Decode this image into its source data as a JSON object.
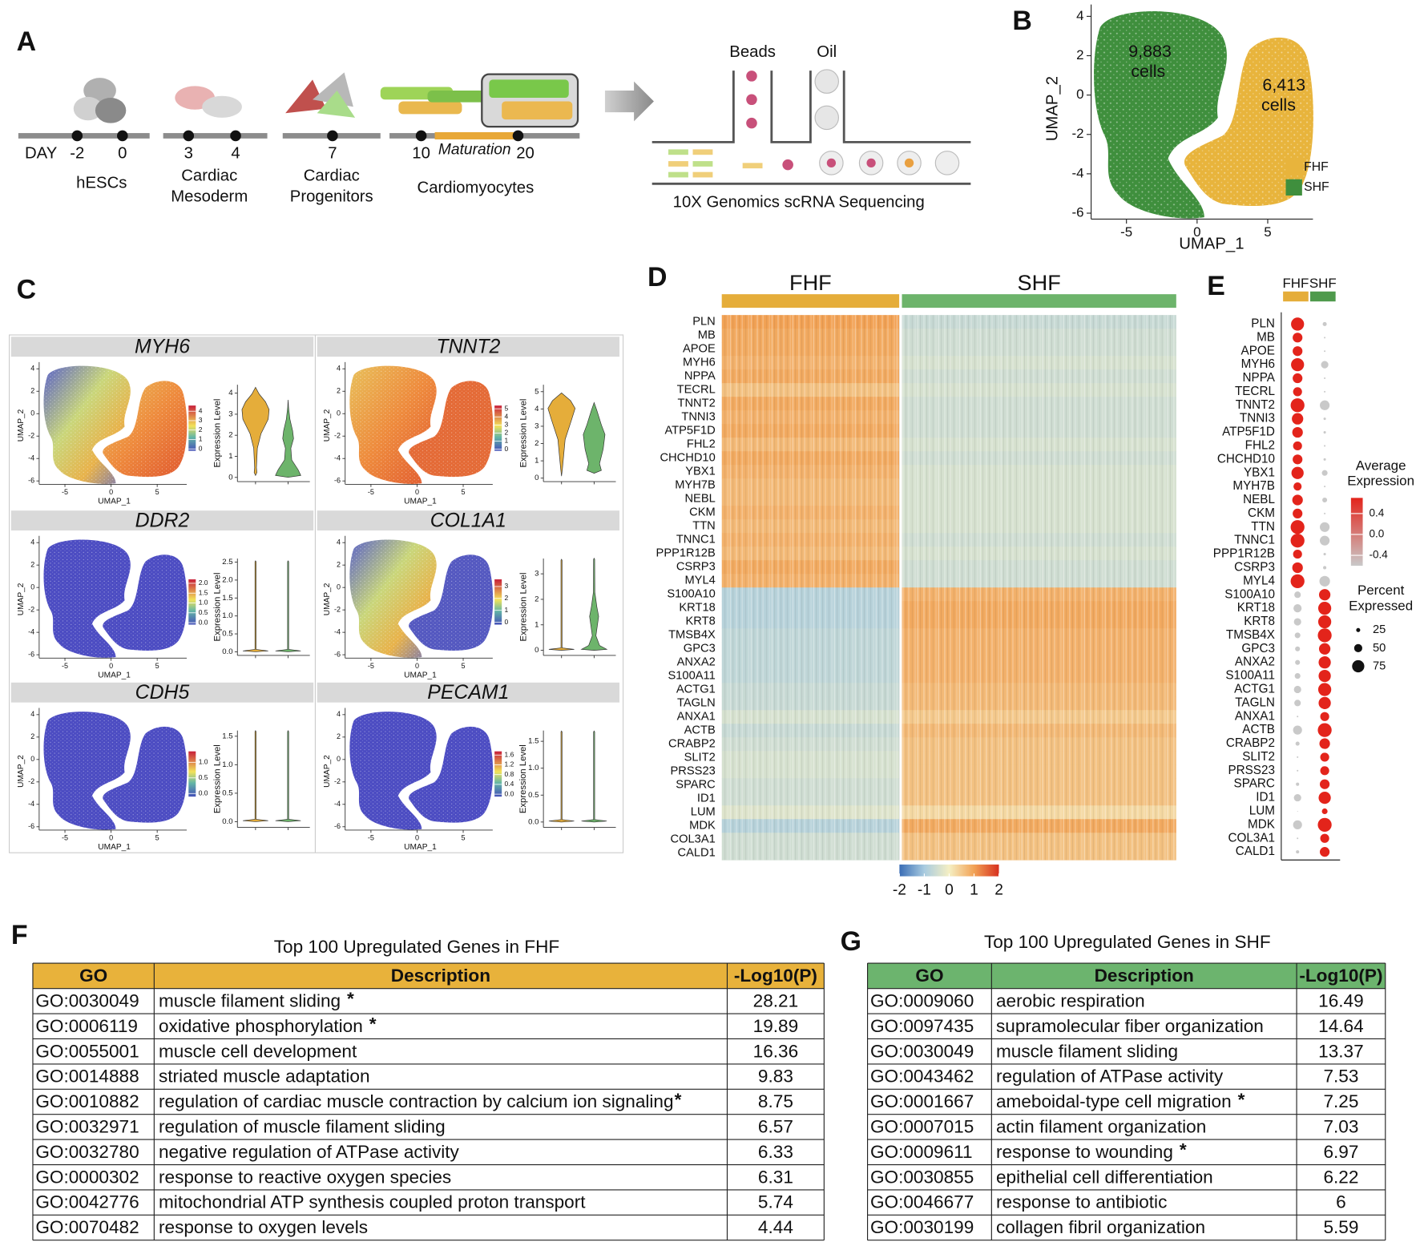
{
  "panel_labels": [
    "A",
    "B",
    "C",
    "D",
    "E",
    "F",
    "G"
  ],
  "timeline": {
    "day_label": "DAY",
    "days": [
      -2,
      0,
      3,
      4,
      7,
      10,
      20
    ],
    "maturation": "Maturation",
    "stages": [
      [
        "hESCs"
      ],
      [
        "Cardiac",
        "Mesoderm"
      ],
      [
        "Cardiac",
        "Progenitors"
      ],
      [
        "Cardiomyocytes"
      ]
    ],
    "beads": "Beads",
    "oil": "Oil",
    "caption": "10X Genomics scRNA Sequencing"
  },
  "chart_data": [
    {
      "type": "scatter",
      "xlabel": "UMAP_1",
      "ylabel": "UMAP_2",
      "xlim": [
        -7.5,
        8.2
      ],
      "ylim": [
        -6.3,
        4.6
      ],
      "xticks": [
        -5,
        0,
        5
      ],
      "yticks": [
        4,
        2,
        0,
        -2,
        -4,
        -6
      ],
      "series": [
        {
          "name": "FHF",
          "color": "#e8b43c"
        },
        {
          "name": "SHF",
          "color": "#3f8f3d"
        }
      ],
      "annotations": [
        "9,883",
        "cells",
        "6,413",
        "cells"
      ]
    },
    {
      "type": "violin_grid",
      "xlabel": "UMAP_1",
      "ylabel": "UMAP_2",
      "value_label": "Expression Level",
      "xlim": [
        -7.5,
        8.2
      ],
      "ylim": [
        -6.3,
        4.6
      ],
      "xticks": [
        -5,
        0,
        5
      ],
      "yticks": [
        4,
        2,
        0,
        -2,
        -4,
        -6
      ],
      "panels": [
        {
          "gene": "MYH6",
          "scale_lim": [
            -0.2,
            4.6
          ],
          "scale_ticks": [
            0,
            1,
            2,
            3,
            4
          ],
          "vlim": [
            -0.2,
            4.4
          ],
          "vticks": [
            0,
            1,
            2,
            3,
            4
          ]
        },
        {
          "gene": "TNNT2",
          "scale_lim": [
            -0.2,
            5.4
          ],
          "scale_ticks": [
            0,
            1,
            2,
            3,
            4,
            5
          ],
          "vlim": [
            -0.2,
            5.4
          ],
          "vticks": [
            0,
            1,
            2,
            3,
            4,
            5
          ]
        },
        {
          "gene": "DDR2",
          "scale_lim": [
            -0.1,
            2.2
          ],
          "scale_ticks": [
            {
              "value": 0,
              "label": "0.0"
            },
            0.5,
            {
              "value": 1,
              "label": "1.0"
            },
            1.5,
            {
              "value": 2,
              "label": "2.0"
            }
          ],
          "vlim": [
            -0.1,
            2.6
          ],
          "vticks": [
            {
              "value": 0,
              "label": "0.0"
            },
            0.5,
            {
              "value": 1,
              "label": "1.0"
            },
            1.5,
            {
              "value": 2,
              "label": "2.0"
            },
            2.5
          ]
        },
        {
          "gene": "COL1A1",
          "scale_lim": [
            -0.2,
            3.6
          ],
          "scale_ticks": [
            0,
            1,
            2,
            3
          ],
          "vlim": [
            -0.2,
            3.6
          ],
          "vticks": [
            0,
            1,
            2,
            3
          ]
        },
        {
          "gene": "CDH5",
          "scale_lim": [
            -0.1,
            1.35
          ],
          "scale_ticks": [
            {
              "value": 0,
              "label": "0.0"
            },
            0.5,
            {
              "value": 1,
              "label": "1.0"
            }
          ],
          "vlim": [
            -0.1,
            1.6
          ],
          "vticks": [
            {
              "value": 0,
              "label": "0.0"
            },
            0.5,
            {
              "value": 1,
              "label": "1.0"
            },
            1.5
          ]
        },
        {
          "gene": "PECAM1",
          "scale_lim": [
            -0.1,
            1.75
          ],
          "scale_ticks": [
            {
              "value": 0,
              "label": "0.0"
            },
            0.4,
            0.8,
            1.2,
            1.6
          ],
          "vlim": [
            -0.1,
            1.7
          ],
          "vticks": [
            {
              "value": 0,
              "label": "0.0"
            },
            0.5,
            {
              "value": 1,
              "label": "1.0"
            },
            1.5
          ]
        }
      ]
    },
    {
      "type": "heatmap",
      "groups": [
        {
          "name": "FHF",
          "color": "#e5ad3a"
        },
        {
          "name": "SHF",
          "color": "#6db46b"
        }
      ],
      "genes": [
        "PLN",
        "MB",
        "APOE",
        "MYH6",
        "NPPA",
        "TECRL",
        "TNNT2",
        "TNNI3",
        "ATP5F1D",
        "FHL2",
        "CHCHD10",
        "YBX1",
        "MYH7B",
        "NEBL",
        "CKM",
        "TTN",
        "TNNC1",
        "PPP1R12B",
        "CSRP3",
        "MYL4",
        "S100A10",
        "KRT18",
        "KRT8",
        "TMSB4X",
        "GPC3",
        "ANXA2",
        "S100A11",
        "ACTG1",
        "TAGLN",
        "ANXA1",
        "ACTB",
        "CRABP2",
        "SLIT2",
        "PRSS23",
        "SPARC",
        "ID1",
        "LUM",
        "MDK",
        "COL3A1",
        "CALD1"
      ],
      "values": [
        [
          1.0,
          -0.6
        ],
        [
          0.9,
          -0.5
        ],
        [
          0.9,
          -0.5
        ],
        [
          0.8,
          -0.4
        ],
        [
          0.9,
          -0.5
        ],
        [
          0.6,
          -0.4
        ],
        [
          0.9,
          -0.5
        ],
        [
          0.8,
          -0.5
        ],
        [
          0.9,
          -0.5
        ],
        [
          0.7,
          -0.4
        ],
        [
          0.9,
          -0.5
        ],
        [
          0.8,
          -0.4
        ],
        [
          0.7,
          -0.4
        ],
        [
          0.7,
          -0.4
        ],
        [
          0.8,
          -0.4
        ],
        [
          0.7,
          -0.4
        ],
        [
          0.8,
          -0.5
        ],
        [
          0.7,
          -0.4
        ],
        [
          0.9,
          -0.5
        ],
        [
          0.8,
          -0.5
        ],
        [
          -0.8,
          0.8
        ],
        [
          -0.8,
          0.9
        ],
        [
          -0.8,
          0.9
        ],
        [
          -0.7,
          0.8
        ],
        [
          -0.7,
          0.8
        ],
        [
          -0.7,
          0.8
        ],
        [
          -0.7,
          0.8
        ],
        [
          -0.6,
          0.7
        ],
        [
          -0.6,
          0.7
        ],
        [
          -0.4,
          0.5
        ],
        [
          -0.6,
          0.7
        ],
        [
          -0.5,
          0.6
        ],
        [
          -0.4,
          0.6
        ],
        [
          -0.4,
          0.6
        ],
        [
          -0.5,
          0.6
        ],
        [
          -0.5,
          0.6
        ],
        [
          -0.3,
          0.3
        ],
        [
          -0.8,
          0.9
        ],
        [
          -0.5,
          0.6
        ],
        [
          -0.5,
          0.6
        ]
      ],
      "zlim": [
        -2.3,
        2.25
      ],
      "zticks": [
        -2,
        -1,
        0,
        1,
        2
      ],
      "colors": [
        "#3a6db5",
        "#a8cbe0",
        "#f5efc3",
        "#f2a255",
        "#d7301f"
      ]
    },
    {
      "type": "dot",
      "groups": [
        {
          "name": "FHF",
          "color": "#e5ad3a"
        },
        {
          "name": "SHF",
          "color": "#4f9a4c"
        }
      ],
      "genes": [
        "PLN",
        "MB",
        "APOE",
        "MYH6",
        "NPPA",
        "TECRL",
        "TNNT2",
        "TNNI3",
        "ATP5F1D",
        "FHL2",
        "CHCHD10",
        "YBX1",
        "MYH7B",
        "NEBL",
        "CKM",
        "TTN",
        "TNNC1",
        "PPP1R12B",
        "CSRP3",
        "MYL4",
        "S100A10",
        "KRT18",
        "KRT8",
        "TMSB4X",
        "GPC3",
        "ANXA2",
        "S100A11",
        "ACTG1",
        "TAGLN",
        "ANXA1",
        "ACTB",
        "CRABP2",
        "SLIT2",
        "PRSS23",
        "SPARC",
        "ID1",
        "LUM",
        "MDK",
        "COL3A1",
        "CALD1"
      ],
      "avg": [
        [
          0.45,
          -0.4
        ],
        [
          0.45,
          -0.4
        ],
        [
          0.45,
          -0.4
        ],
        [
          0.45,
          -0.4
        ],
        [
          0.45,
          -0.4
        ],
        [
          0.45,
          -0.4
        ],
        [
          0.45,
          -0.4
        ],
        [
          0.45,
          -0.4
        ],
        [
          0.45,
          -0.4
        ],
        [
          0.45,
          -0.4
        ],
        [
          0.45,
          -0.4
        ],
        [
          0.45,
          -0.4
        ],
        [
          0.45,
          -0.4
        ],
        [
          0.45,
          -0.4
        ],
        [
          0.45,
          -0.4
        ],
        [
          0.45,
          -0.4
        ],
        [
          0.45,
          -0.4
        ],
        [
          0.45,
          -0.4
        ],
        [
          0.45,
          -0.4
        ],
        [
          0.45,
          -0.4
        ],
        [
          -0.4,
          0.45
        ],
        [
          -0.4,
          0.45
        ],
        [
          -0.4,
          0.45
        ],
        [
          -0.4,
          0.45
        ],
        [
          -0.4,
          0.45
        ],
        [
          -0.4,
          0.45
        ],
        [
          -0.4,
          0.45
        ],
        [
          -0.4,
          0.45
        ],
        [
          -0.4,
          0.45
        ],
        [
          -0.4,
          0.45
        ],
        [
          -0.4,
          0.45
        ],
        [
          -0.4,
          0.45
        ],
        [
          -0.4,
          0.45
        ],
        [
          -0.4,
          0.45
        ],
        [
          -0.4,
          0.45
        ],
        [
          -0.4,
          0.45
        ],
        [
          -0.4,
          0.45
        ],
        [
          -0.4,
          0.45
        ],
        [
          -0.4,
          0.45
        ],
        [
          -0.4,
          0.45
        ]
      ],
      "pct": [
        [
          80,
          25
        ],
        [
          60,
          10
        ],
        [
          60,
          10
        ],
        [
          80,
          45
        ],
        [
          60,
          10
        ],
        [
          55,
          10
        ],
        [
          85,
          60
        ],
        [
          70,
          15
        ],
        [
          65,
          15
        ],
        [
          55,
          10
        ],
        [
          60,
          15
        ],
        [
          75,
          35
        ],
        [
          50,
          10
        ],
        [
          65,
          30
        ],
        [
          60,
          10
        ],
        [
          85,
          60
        ],
        [
          85,
          60
        ],
        [
          55,
          15
        ],
        [
          65,
          20
        ],
        [
          85,
          65
        ],
        [
          40,
          70
        ],
        [
          50,
          80
        ],
        [
          45,
          80
        ],
        [
          35,
          85
        ],
        [
          30,
          70
        ],
        [
          30,
          75
        ],
        [
          35,
          75
        ],
        [
          45,
          80
        ],
        [
          40,
          75
        ],
        [
          10,
          55
        ],
        [
          55,
          85
        ],
        [
          25,
          65
        ],
        [
          10,
          55
        ],
        [
          10,
          55
        ],
        [
          20,
          60
        ],
        [
          45,
          75
        ],
        [
          5,
          35
        ],
        [
          55,
          85
        ],
        [
          10,
          55
        ],
        [
          20,
          60
        ]
      ],
      "color_title": [
        "Average",
        "Expression"
      ],
      "color_lim": [
        -0.6,
        0.7
      ],
      "color_ticks": [
        0.4,
        {
          "value": 0,
          "label": "0.0"
        },
        -0.4
      ],
      "low_color": "#c9c9c9",
      "high_color": "#e3241b",
      "size_title": [
        "Percent",
        "Expressed"
      ],
      "size_ticks": [
        25,
        50,
        75
      ]
    }
  ],
  "tables": [
    {
      "title": "Top 100 Upregulated Genes in FHF",
      "color": "#e8b23b",
      "columns": [
        "GO",
        "Description",
        "-Log10(P)"
      ],
      "rows": [
        {
          "go": "GO:0030049",
          "description": "muscle filament sliding",
          "p": 28.21,
          "flag": "*"
        },
        {
          "go": "GO:0006119",
          "description": "oxidative phosphorylation",
          "p": 19.89,
          "flag": "*"
        },
        {
          "go": "GO:0055001",
          "description": "muscle cell development",
          "p": 16.36
        },
        {
          "go": "GO:0014888",
          "description": "striated muscle adaptation",
          "p": 9.83
        },
        {
          "go": "GO:0010882",
          "description": "regulation of cardiac muscle contraction by calcium ion signaling",
          "p": 8.75,
          "flag": "*"
        },
        {
          "go": "GO:0032971",
          "description": "regulation of muscle filament sliding",
          "p": 6.57
        },
        {
          "go": "GO:0032780",
          "description": "negative regulation of ATPase activity",
          "p": 6.33
        },
        {
          "go": "GO:0000302",
          "description": "response to reactive oxygen species",
          "p": 6.31
        },
        {
          "go": "GO:0042776",
          "description": "mitochondrial ATP synthesis coupled proton transport",
          "p": 5.74
        },
        {
          "go": "GO:0070482",
          "description": "response to oxygen levels",
          "p": 4.44
        }
      ]
    },
    {
      "title": "Top 100 Upregulated Genes in SHF",
      "color": "#6cb46e",
      "columns": [
        "GO",
        "Description",
        "-Log10(P)"
      ],
      "rows": [
        {
          "go": "GO:0009060",
          "description": "aerobic respiration",
          "p": 16.49
        },
        {
          "go": "GO:0097435",
          "description": "supramolecular fiber organization",
          "p": 14.64
        },
        {
          "go": "GO:0030049",
          "description": "muscle filament sliding",
          "p": 13.37
        },
        {
          "go": "GO:0043462",
          "description": "regulation of ATPase activity",
          "p": 7.53
        },
        {
          "go": "GO:0001667",
          "description": "ameboidal-type cell migration",
          "p": 7.25,
          "flag": "*"
        },
        {
          "go": "GO:0007015",
          "description": "actin filament organization",
          "p": 7.03
        },
        {
          "go": "GO:0009611",
          "description": "response to wounding",
          "p": 6.97,
          "flag": "*"
        },
        {
          "go": "GO:0030855",
          "description": "epithelial cell differentiation",
          "p": 6.22
        },
        {
          "go": "GO:0046677",
          "description": "response to antibiotic",
          "p": 6
        },
        {
          "go": "GO:0030199",
          "description": "collagen fibril organization",
          "p": 5.59
        }
      ]
    }
  ]
}
